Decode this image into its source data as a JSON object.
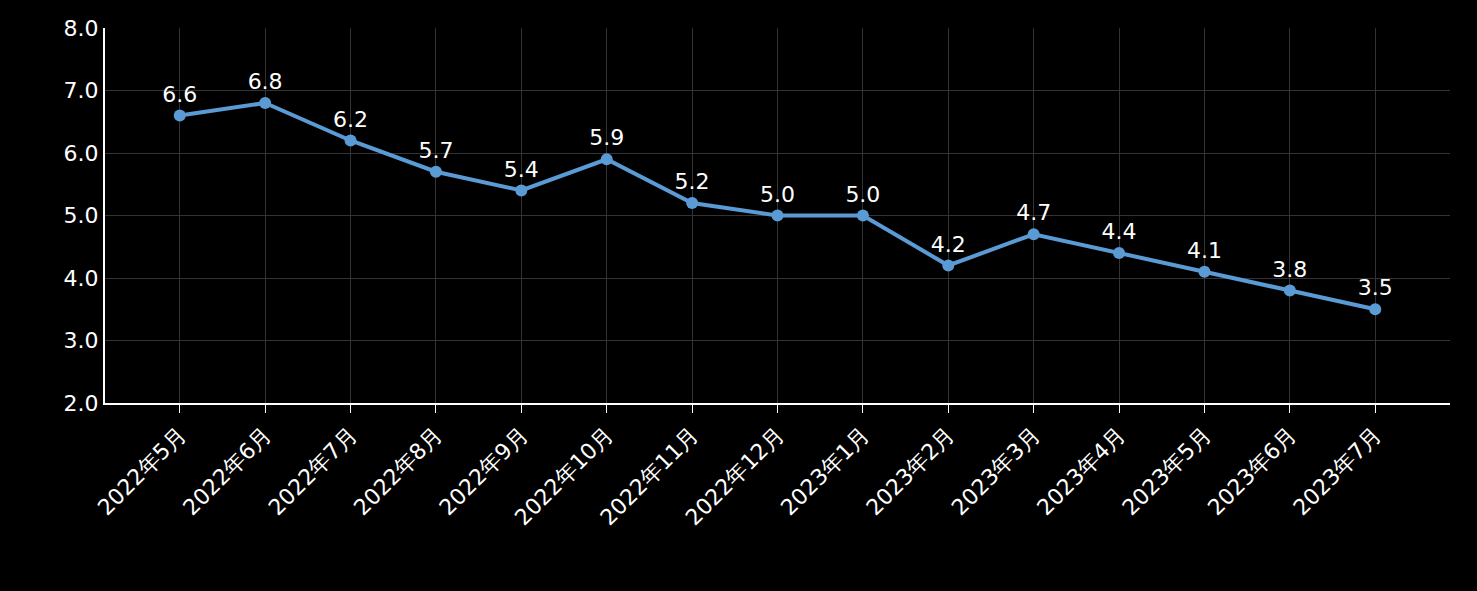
{
  "chart_data": {
    "type": "line",
    "categories": [
      "2022年5月",
      "2022年6月",
      "2022年7月",
      "2022年8月",
      "2022年9月",
      "2022年10月",
      "2022年11月",
      "2022年12月",
      "2023年1月",
      "2023年2月",
      "2023年3月",
      "2023年4月",
      "2023年5月",
      "2023年6月",
      "2023年7月"
    ],
    "values": [
      6.6,
      6.8,
      6.2,
      5.7,
      5.4,
      5.9,
      5.2,
      5.0,
      5.0,
      4.2,
      4.7,
      4.4,
      4.1,
      3.8,
      3.5
    ],
    "value_labels": [
      "6.6",
      "6.8",
      "6.2",
      "5.7",
      "5.4",
      "5.9",
      "5.2",
      "5.0",
      "5.0",
      "4.2",
      "4.7",
      "4.4",
      "4.1",
      "3.8",
      "3.5"
    ],
    "color": "#5b9bd5",
    "marker": "circle",
    "data_labels": true,
    "ylim": [
      2,
      8
    ],
    "yticks": [
      {
        "value": 2,
        "label": "2.0"
      },
      {
        "value": 3,
        "label": "3.0"
      },
      {
        "value": 4,
        "label": "4.0"
      },
      {
        "value": 5,
        "label": "5.0"
      },
      {
        "value": 6,
        "label": "6.0"
      },
      {
        "value": 7,
        "label": "7.0"
      },
      {
        "value": 8,
        "label": "8.0"
      }
    ],
    "grid": true
  }
}
